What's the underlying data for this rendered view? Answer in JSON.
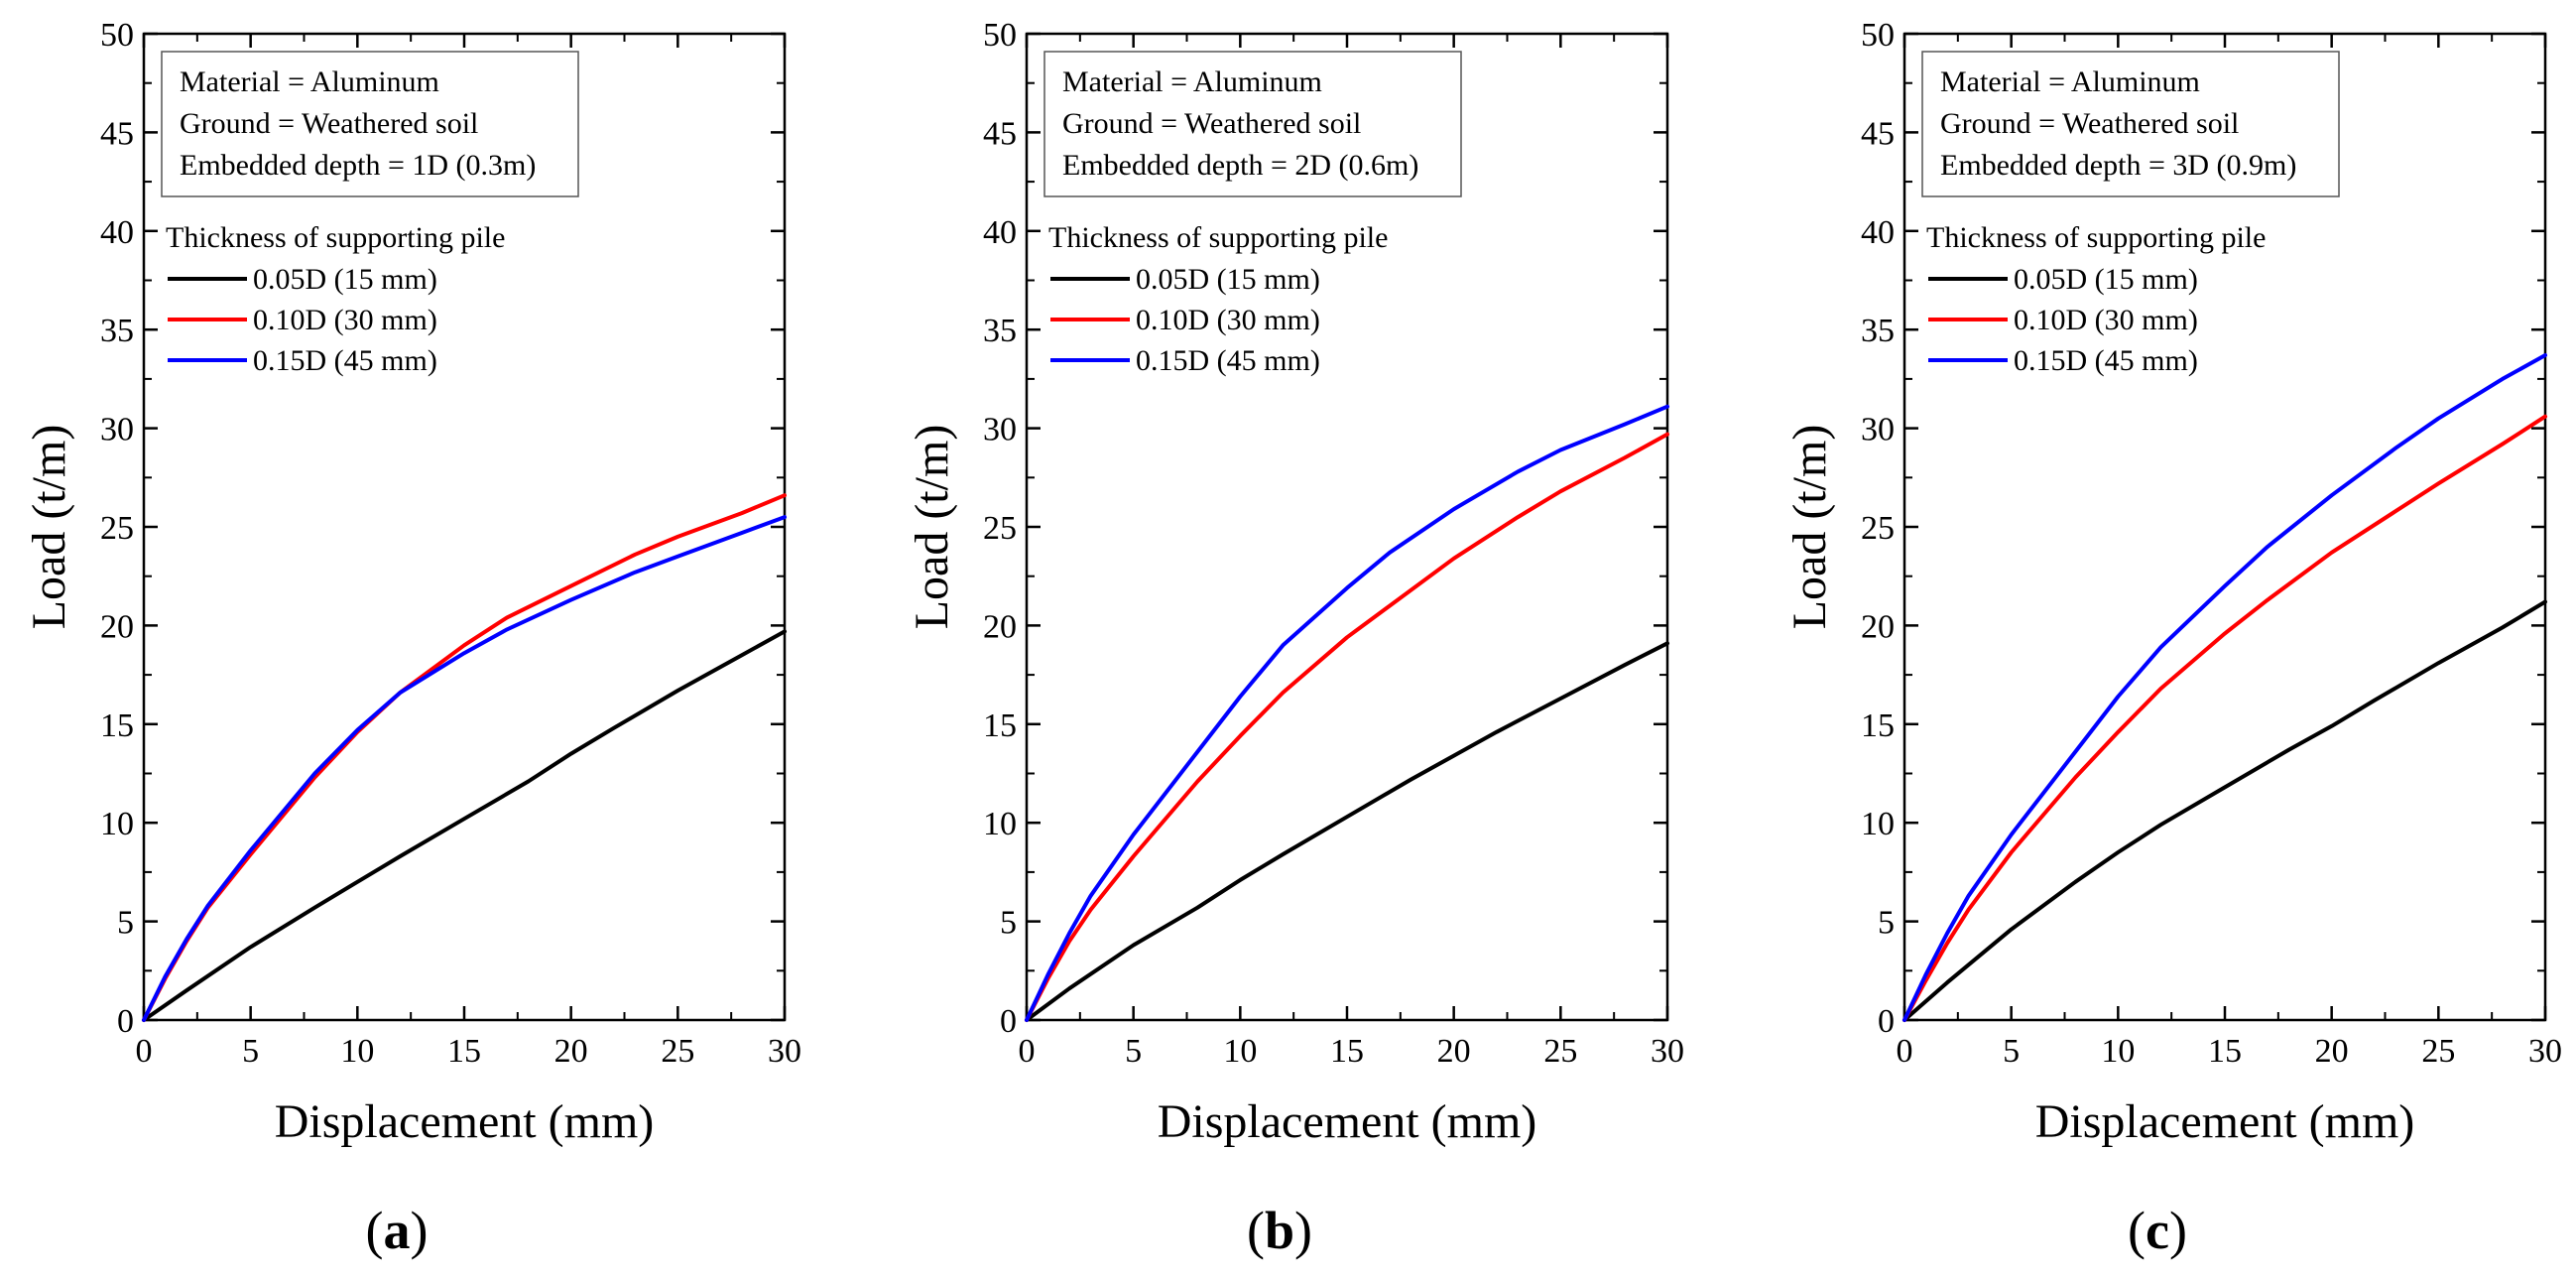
{
  "chart_data": [
    {
      "type": "line",
      "panel_label": "a",
      "xlabel": "Displacement (mm)",
      "ylabel": "Load (t/m)",
      "xlim": [
        0,
        30
      ],
      "ylim": [
        0,
        50
      ],
      "xticks": [
        0,
        5,
        10,
        15,
        20,
        25,
        30
      ],
      "yticks": [
        0,
        5,
        10,
        15,
        20,
        25,
        30,
        35,
        40,
        45,
        50
      ],
      "grid": false,
      "info_box": [
        "Material = Aluminum",
        "Ground = Weathered soil",
        "Embedded depth = 1D (0.3m)"
      ],
      "legend_title": "Thickness of supporting pile",
      "legend_position": "upper-left",
      "series": [
        {
          "name": "0.05D (15 mm)",
          "color": "#000000",
          "x": [
            0,
            2,
            5,
            8,
            10,
            12,
            15,
            18,
            20,
            22,
            25,
            28,
            30
          ],
          "y": [
            0,
            1.5,
            3.7,
            5.7,
            7.0,
            8.3,
            10.2,
            12.1,
            13.5,
            14.8,
            16.7,
            18.5,
            19.7
          ]
        },
        {
          "name": "0.10D (30 mm)",
          "color": "#ff0000",
          "x": [
            0,
            1,
            2,
            3,
            5,
            8,
            10,
            12,
            15,
            17,
            20,
            23,
            25,
            28,
            30
          ],
          "y": [
            0,
            2.1,
            4.0,
            5.7,
            8.4,
            12.3,
            14.6,
            16.6,
            19.0,
            20.4,
            22.0,
            23.6,
            24.5,
            25.7,
            26.6
          ]
        },
        {
          "name": "0.15D (45 mm)",
          "color": "#0000ff",
          "x": [
            0,
            1,
            2,
            3,
            5,
            8,
            10,
            12,
            15,
            17,
            20,
            23,
            25,
            28,
            30
          ],
          "y": [
            0,
            2.2,
            4.1,
            5.8,
            8.6,
            12.5,
            14.7,
            16.6,
            18.6,
            19.8,
            21.3,
            22.7,
            23.5,
            24.7,
            25.5
          ]
        }
      ]
    },
    {
      "type": "line",
      "panel_label": "b",
      "xlabel": "Displacement (mm)",
      "ylabel": "Load (t/m)",
      "xlim": [
        0,
        30
      ],
      "ylim": [
        0,
        50
      ],
      "xticks": [
        0,
        5,
        10,
        15,
        20,
        25,
        30
      ],
      "yticks": [
        0,
        5,
        10,
        15,
        20,
        25,
        30,
        35,
        40,
        45,
        50
      ],
      "grid": false,
      "info_box": [
        "Material = Aluminum",
        "Ground = Weathered soil",
        "Embedded depth = 2D (0.6m)"
      ],
      "legend_title": "Thickness of supporting pile",
      "legend_position": "upper-left",
      "series": [
        {
          "name": "0.05D (15 mm)",
          "color": "#000000",
          "x": [
            0,
            2,
            5,
            8,
            10,
            12,
            15,
            18,
            20,
            22,
            25,
            28,
            30
          ],
          "y": [
            0,
            1.6,
            3.8,
            5.7,
            7.1,
            8.4,
            10.3,
            12.2,
            13.4,
            14.6,
            16.3,
            18.0,
            19.1
          ]
        },
        {
          "name": "0.10D (30 mm)",
          "color": "#ff0000",
          "x": [
            0,
            1,
            2,
            3,
            5,
            8,
            10,
            12,
            15,
            17,
            20,
            23,
            25,
            28,
            30
          ],
          "y": [
            0,
            2.1,
            4.0,
            5.6,
            8.3,
            12.1,
            14.4,
            16.6,
            19.4,
            21.0,
            23.4,
            25.5,
            26.8,
            28.5,
            29.7
          ]
        },
        {
          "name": "0.15D (45 mm)",
          "color": "#0000ff",
          "x": [
            0,
            1,
            2,
            3,
            5,
            8,
            10,
            12,
            15,
            17,
            20,
            23,
            25,
            28,
            30
          ],
          "y": [
            0,
            2.3,
            4.4,
            6.3,
            9.4,
            13.6,
            16.4,
            19.0,
            21.9,
            23.7,
            25.9,
            27.8,
            28.9,
            30.2,
            31.1
          ]
        }
      ]
    },
    {
      "type": "line",
      "panel_label": "c",
      "xlabel": "Displacement (mm)",
      "ylabel": "Load (t/m)",
      "xlim": [
        0,
        30
      ],
      "ylim": [
        0,
        50
      ],
      "xticks": [
        0,
        5,
        10,
        15,
        20,
        25,
        30
      ],
      "yticks": [
        0,
        5,
        10,
        15,
        20,
        25,
        30,
        35,
        40,
        45,
        50
      ],
      "grid": false,
      "info_box": [
        "Material = Aluminum",
        "Ground = Weathered soil",
        "Embedded depth = 3D (0.9m)"
      ],
      "legend_title": "Thickness of supporting pile",
      "legend_position": "upper-left",
      "series": [
        {
          "name": "0.05D (15 mm)",
          "color": "#000000",
          "x": [
            0,
            2,
            5,
            8,
            10,
            12,
            15,
            18,
            20,
            22,
            25,
            28,
            30
          ],
          "y": [
            0,
            1.9,
            4.6,
            7.0,
            8.5,
            9.9,
            11.8,
            13.7,
            14.9,
            16.2,
            18.1,
            19.9,
            21.2
          ]
        },
        {
          "name": "0.10D (30 mm)",
          "color": "#ff0000",
          "x": [
            0,
            1,
            2,
            3,
            5,
            8,
            10,
            12,
            15,
            17,
            20,
            23,
            25,
            28,
            30
          ],
          "y": [
            0,
            2.0,
            3.9,
            5.6,
            8.5,
            12.3,
            14.6,
            16.8,
            19.6,
            21.3,
            23.7,
            25.8,
            27.2,
            29.2,
            30.6
          ]
        },
        {
          "name": "0.15D (45 mm)",
          "color": "#0000ff",
          "x": [
            0,
            1,
            2,
            3,
            5,
            8,
            10,
            12,
            15,
            17,
            20,
            23,
            25,
            28,
            30
          ],
          "y": [
            0,
            2.3,
            4.4,
            6.3,
            9.4,
            13.6,
            16.4,
            18.9,
            22.0,
            24.0,
            26.6,
            29.0,
            30.5,
            32.5,
            33.7
          ]
        }
      ]
    }
  ]
}
